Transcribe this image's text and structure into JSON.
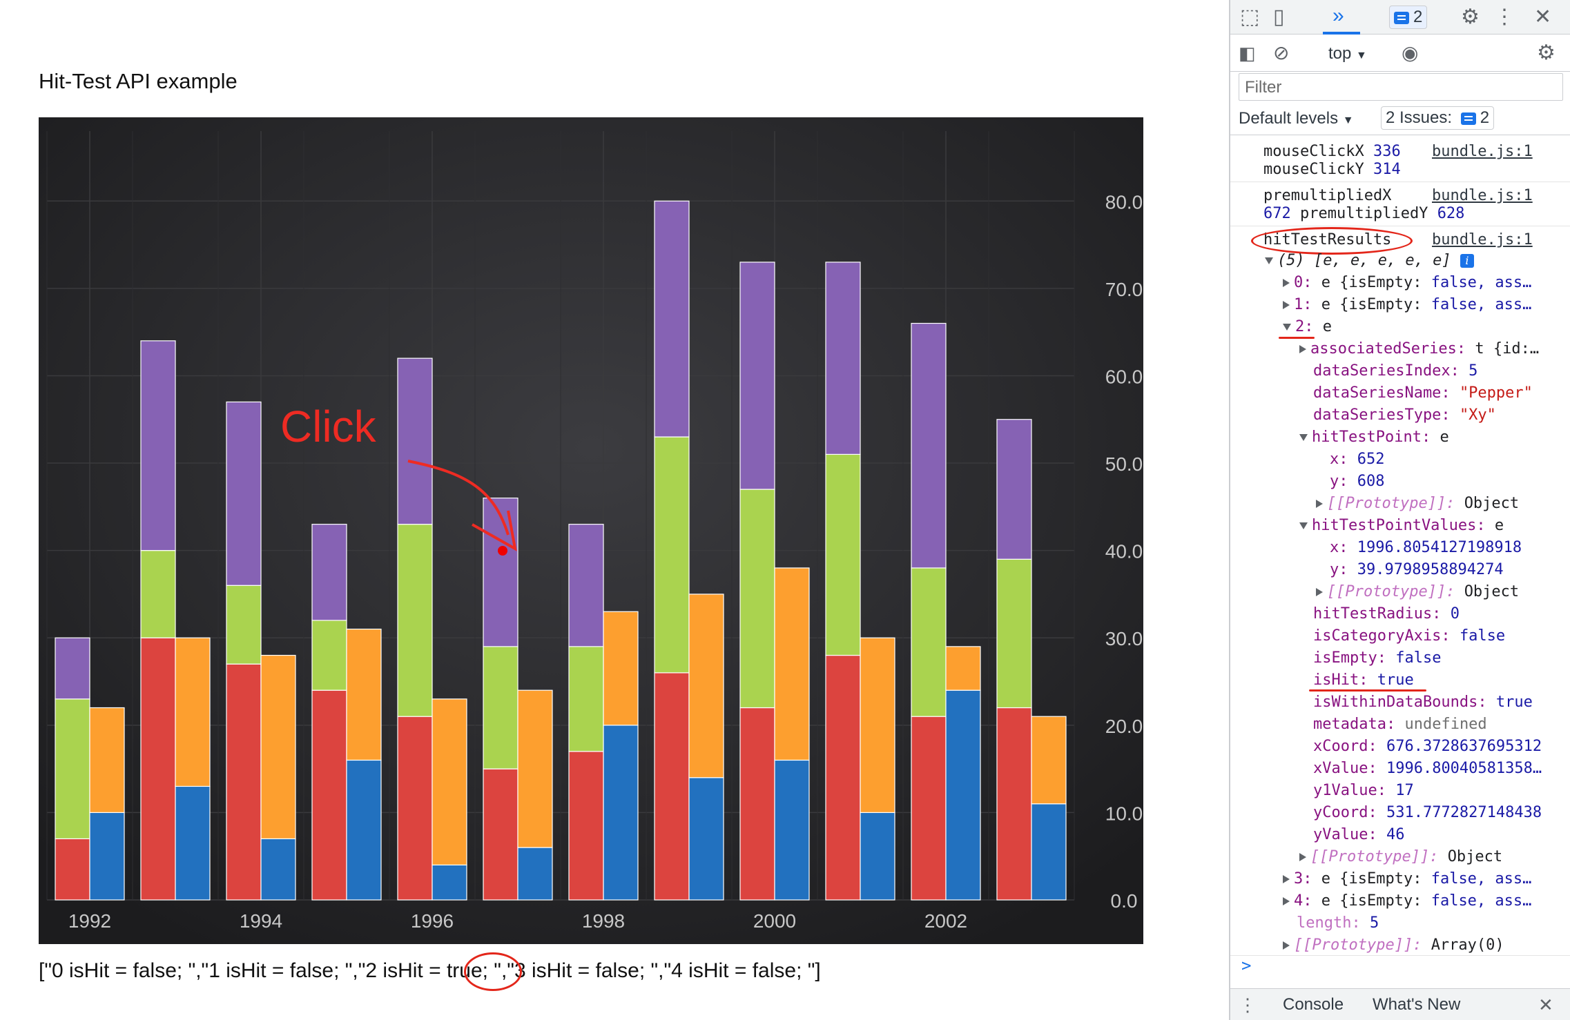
{
  "page": {
    "title": "Hit-Test API example",
    "result_text": "[\"0 isHit = false; \",\"1 isHit = false; \",\"2 isHit = true; \",\"3 isHit = false; \",\"4 isHit = false; \"]"
  },
  "chart_annotation": {
    "click_label": "Click"
  },
  "chart_data": {
    "type": "bar",
    "x": [
      1992,
      1993,
      1994,
      1995,
      1996,
      1997,
      1998,
      1999,
      2000,
      2001,
      2002,
      2003
    ],
    "x_tick_labels": [
      "1992",
      "1994",
      "1996",
      "1998",
      "2000",
      "2002"
    ],
    "y_tick_labels": [
      "0.0",
      "10.0",
      "20.0",
      "30.0",
      "40.0",
      "50.0",
      "60.0",
      "70.0",
      "80.0"
    ],
    "ylim": [
      0,
      88
    ],
    "stacks": [
      {
        "series": [
          {
            "color": "#dc443f",
            "values": [
              7,
              30,
              27,
              24,
              21,
              15,
              17,
              26,
              22,
              28,
              21,
              22
            ]
          },
          {
            "color": "#aad34f",
            "values": [
              16,
              10,
              9,
              8,
              22,
              14,
              12,
              27,
              25,
              23,
              17,
              17
            ]
          },
          {
            "color": "#8662b4",
            "values": [
              7,
              24,
              21,
              11,
              19,
              17,
              14,
              27,
              26,
              22,
              28,
              16
            ]
          }
        ]
      },
      {
        "series": [
          {
            "color": "#2271bf",
            "values": [
              10,
              13,
              7,
              16,
              4,
              6,
              20,
              14,
              16,
              10,
              24,
              11
            ]
          },
          {
            "color": "#fd9f2f",
            "values": [
              12,
              17,
              21,
              15,
              19,
              18,
              13,
              21,
              22,
              20,
              5,
              10
            ]
          }
        ]
      }
    ],
    "background": "#232325",
    "gridline_color": "#3a3a3d",
    "label_color": "#c8c8c8"
  },
  "devtools": {
    "toolbar": {
      "issues_badge_count": "2",
      "context": "top",
      "filter_placeholder": "Filter",
      "levels": "Default levels",
      "issues_label": "2 Issues:",
      "issues_count": "2"
    },
    "source": "bundle.js:1",
    "messages": {
      "click_x_label": "mouseClickX",
      "click_x": "336",
      "click_y_label": "mouseClickY",
      "click_y": "314",
      "premult_x_label": "premultipliedX",
      "premult_x": "672",
      "premult_y_label": "premultipliedY",
      "premult_y": "628",
      "hit_label": "hitTestResults"
    },
    "tree": {
      "array_summary": "(5) [e, e, e, e, e]",
      "item0": "0:",
      "item0_val": "e {isEmpty:",
      "item0_tail": "false, ass…",
      "item1": "1:",
      "item1_val": "e {isEmpty:",
      "item1_tail": "false, ass…",
      "item2": "2:",
      "item2_val": "e",
      "assoc_k": "associatedSeries:",
      "assoc_v": "t {id:…",
      "dsi_k": "dataSeriesIndex:",
      "dsi_v": "5",
      "dsn_k": "dataSeriesName:",
      "dsn_v": "\"Pepper\"",
      "dst_k": "dataSeriesType:",
      "dst_v": "\"Xy\"",
      "htp_k": "hitTestPoint:",
      "htp_v": "e",
      "htp_x_k": "x:",
      "htp_x_v": "652",
      "htp_y_k": "y:",
      "htp_y_v": "608",
      "proto_k": "[[Prototype]]:",
      "proto_v": "Object",
      "htpv_k": "hitTestPointValues:",
      "htpv_v": "e",
      "htpv_x_k": "x:",
      "htpv_x_v": "1996.8054127198918",
      "htpv_y_k": "y:",
      "htpv_y_v": "39.9798958894274",
      "htr_k": "hitTestRadius:",
      "htr_v": "0",
      "ica_k": "isCategoryAxis:",
      "ica_v": "false",
      "ie_k": "isEmpty:",
      "ie_v": "false",
      "ih_k": "isHit:",
      "ih_v": "true",
      "iwdb_k": "isWithinDataBounds:",
      "iwdb_v": "true",
      "meta_k": "metadata:",
      "meta_v": "undefined",
      "xc_k": "xCoord:",
      "xc_v": "676.3728637695312",
      "xv_k": "xValue:",
      "xv_v": "1996.80040581358…",
      "y1_k": "y1Value:",
      "y1_v": "17",
      "yc_k": "yCoord:",
      "yc_v": "531.7772827148438",
      "yv_k": "yValue:",
      "yv_v": "46",
      "item3": "3:",
      "item3_val": "e {isEmpty:",
      "item3_tail": "false, ass…",
      "item4": "4:",
      "item4_val": "e {isEmpty:",
      "item4_tail": "false, ass…",
      "len_k": "length:",
      "len_v": "5",
      "aproto_k": "[[Prototype]]:",
      "aproto_v": "Array(0)"
    },
    "prompt": ">",
    "drawer": {
      "console_tab": "Console",
      "whats_new_tab": "What's New"
    }
  }
}
